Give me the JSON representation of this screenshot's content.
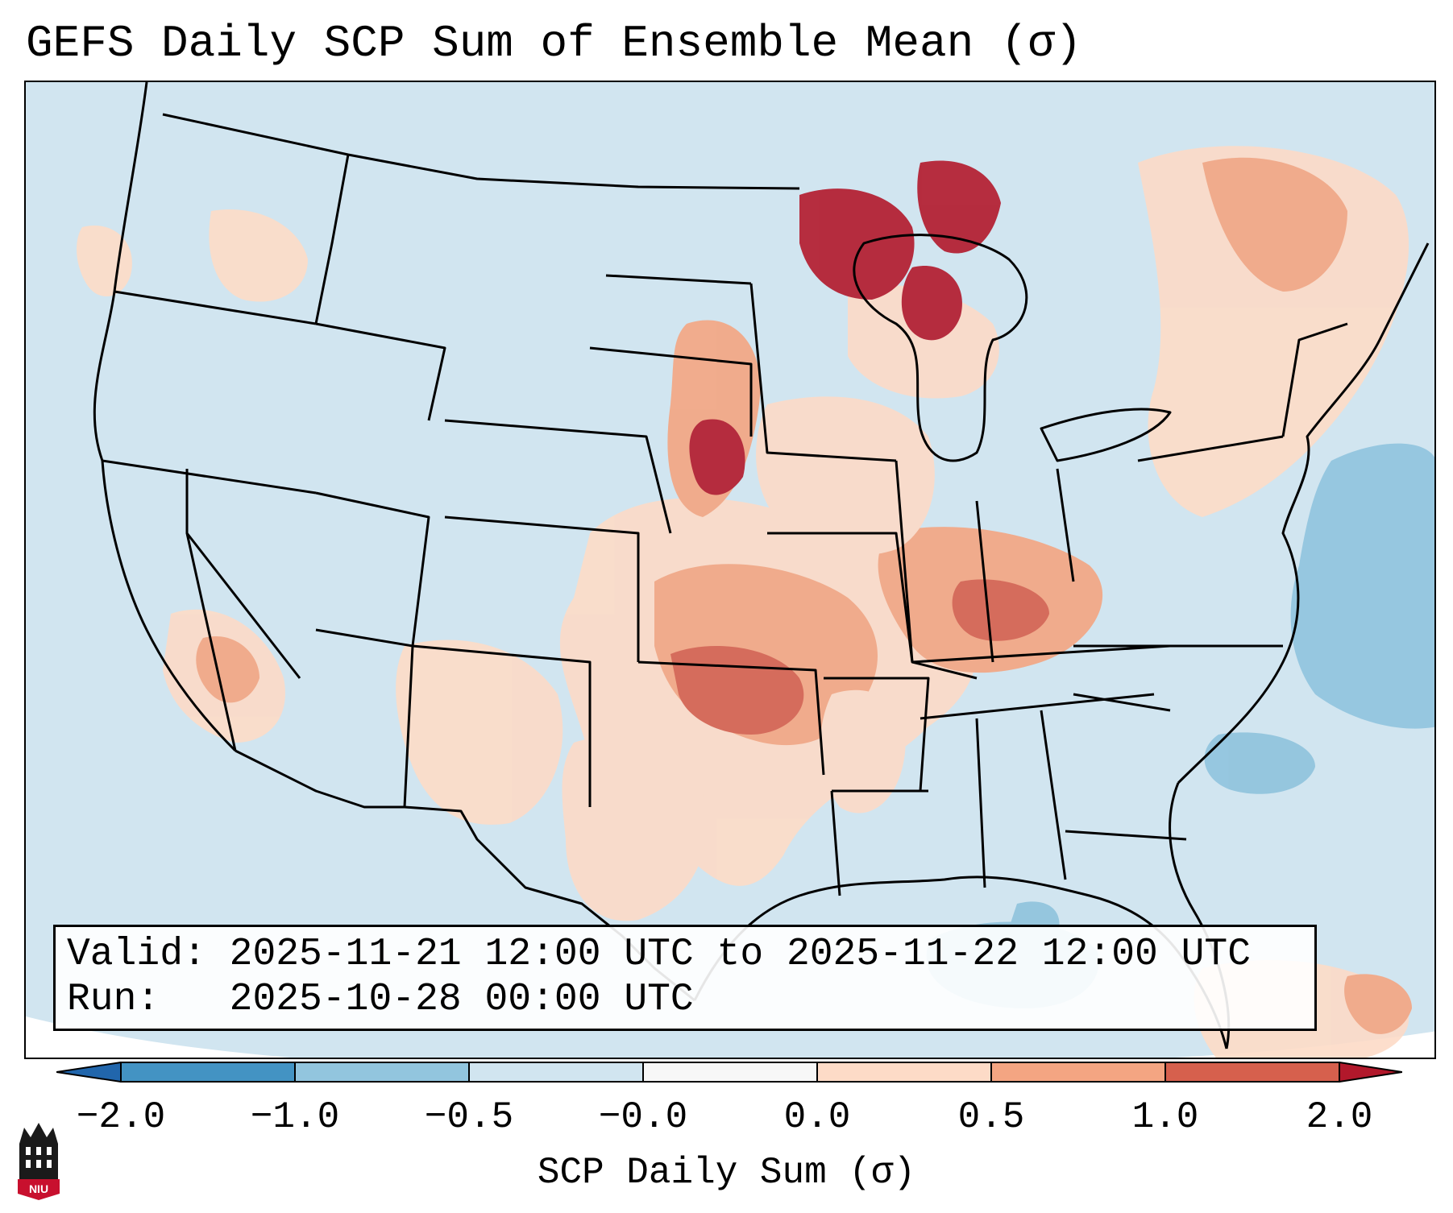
{
  "title": "GEFS Daily SCP Sum of Ensemble Mean (σ)",
  "info": {
    "valid_line": "Valid: 2025-11-21 12:00 UTC to 2025-11-22 12:00 UTC",
    "run_line": "Run:   2025-10-28 00:00 UTC"
  },
  "colorbar": {
    "ticks": [
      "−2.0",
      "−1.0",
      "−0.5",
      "−0.0",
      "0.0",
      "0.5",
      "1.0",
      "2.0"
    ],
    "label": "SCP Daily Sum (σ)",
    "colors": [
      "#2166ac",
      "#4393c3",
      "#92c5de",
      "#d1e5f0",
      "#f7f7f7",
      "#fddbc7",
      "#f4a582",
      "#d6604d",
      "#b2182b"
    ]
  },
  "map": {
    "domain": "CONUS",
    "background_color": "#d1e5f0",
    "outside_color": "#ffffff",
    "features": [
      "state-borders",
      "coastlines",
      "great-lakes"
    ]
  },
  "logo": {
    "text": "NIU",
    "color": "#c8102e"
  }
}
